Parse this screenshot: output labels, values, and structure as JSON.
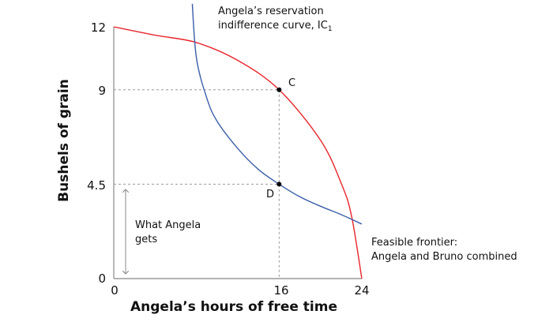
{
  "chart_data": {
    "type": "line",
    "xlabel": "Angela’s hours of free time",
    "ylabel": "Bushels of grain",
    "xlim": [
      0,
      24
    ],
    "ylim": [
      0,
      12
    ],
    "x_ticks": [
      "0",
      "16",
      "24"
    ],
    "x_tick_values": [
      0,
      16,
      24
    ],
    "y_ticks": [
      "0",
      "4.5",
      "9",
      "12"
    ],
    "y_tick_values": [
      0,
      4.5,
      9,
      12
    ],
    "grid": false,
    "series": [
      {
        "color": "#e8252b",
        "x": [
          0,
          4,
          8,
          12,
          16,
          20,
          22,
          23,
          24
        ],
        "y": [
          12,
          11.6,
          11.25,
          10.4,
          9,
          6.6,
          4.55,
          3.0,
          0
        ]
      },
      {
        "color": "#3b5ea8",
        "x": [
          7.6,
          8,
          9,
          10,
          12,
          14,
          16,
          18,
          20,
          22,
          24
        ],
        "y": [
          13.1,
          10.5,
          8.6,
          7.5,
          6.2,
          5.2,
          4.5,
          3.9,
          3.45,
          3.05,
          2.6
        ]
      }
    ],
    "points": [
      {
        "label": "C",
        "x": 16,
        "y": 9
      },
      {
        "label": "D",
        "x": 16,
        "y": 4.5
      }
    ],
    "annotations": {
      "ic_line1": "Angela’s reservation",
      "ic_line2": "indifference curve, IC",
      "ic_sub": "1",
      "frontier_line1": "Feasible frontier:",
      "frontier_line2": "Angela and Bruno combined",
      "gets_line1": "What Angela",
      "gets_line2": "gets"
    }
  }
}
